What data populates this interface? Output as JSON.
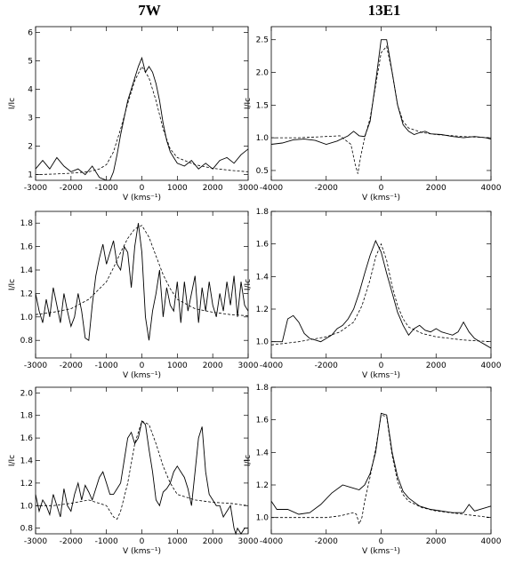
{
  "column_titles": [
    "7W",
    "13E1"
  ],
  "chart_data": [
    {
      "type": "line",
      "xlabel": "V (kms⁻¹)",
      "ylabel": "I/Ic",
      "xlim": [
        -3000,
        3000
      ],
      "ylim": [
        0.8,
        6.2
      ],
      "xticks": [
        -3000,
        -2000,
        -1000,
        0,
        1000,
        2000,
        3000
      ],
      "yticks": [
        1,
        2,
        3,
        4,
        5,
        6
      ],
      "series": [
        {
          "style": "solid",
          "x": [
            -3000,
            -2800,
            -2600,
            -2400,
            -2200,
            -2000,
            -1800,
            -1600,
            -1400,
            -1200,
            -1000,
            -900,
            -800,
            -700,
            -600,
            -500,
            -400,
            -300,
            -200,
            -100,
            0,
            100,
            200,
            300,
            400,
            500,
            600,
            700,
            800,
            900,
            1000,
            1200,
            1400,
            1600,
            1800,
            2000,
            2200,
            2400,
            2600,
            2800,
            3000
          ],
          "y": [
            1.2,
            1.5,
            1.2,
            1.6,
            1.3,
            1.1,
            1.2,
            1.0,
            1.3,
            0.9,
            0.8,
            0.6,
            1.1,
            1.7,
            2.4,
            3.0,
            3.6,
            4.0,
            4.4,
            4.8,
            5.1,
            4.6,
            4.8,
            4.6,
            4.2,
            3.6,
            2.8,
            2.2,
            1.8,
            1.6,
            1.4,
            1.3,
            1.5,
            1.2,
            1.4,
            1.2,
            1.5,
            1.6,
            1.4,
            1.7,
            1.9
          ]
        },
        {
          "style": "dashed",
          "x": [
            -3000,
            -2500,
            -2000,
            -1500,
            -1200,
            -1000,
            -800,
            -600,
            -400,
            -200,
            0,
            200,
            400,
            600,
            800,
            1000,
            1500,
            2000,
            2500,
            3000
          ],
          "y": [
            1.0,
            1.02,
            1.05,
            1.1,
            1.2,
            1.35,
            1.8,
            2.6,
            3.5,
            4.3,
            4.8,
            4.4,
            3.6,
            2.6,
            1.9,
            1.6,
            1.35,
            1.22,
            1.15,
            1.1
          ]
        }
      ]
    },
    {
      "type": "line",
      "xlabel": "V (kms⁻¹)",
      "ylabel": "I/Ic",
      "xlim": [
        -4000,
        4000
      ],
      "ylim": [
        0.35,
        2.7
      ],
      "xticks": [
        -4000,
        -2000,
        0,
        2000,
        4000
      ],
      "yticks": [
        0.5,
        1.0,
        1.5,
        2.0,
        2.5
      ],
      "series": [
        {
          "style": "solid",
          "x": [
            -4000,
            -3600,
            -3200,
            -2800,
            -2400,
            -2000,
            -1600,
            -1200,
            -1000,
            -800,
            -600,
            -400,
            -200,
            0,
            200,
            400,
            600,
            800,
            1000,
            1200,
            1400,
            1600,
            1800,
            2200,
            2600,
            3000,
            3400,
            3800,
            4000
          ],
          "y": [
            0.9,
            0.92,
            0.97,
            0.98,
            0.96,
            0.9,
            0.95,
            1.03,
            1.1,
            1.03,
            1.02,
            1.25,
            1.85,
            2.5,
            2.5,
            2.0,
            1.5,
            1.2,
            1.1,
            1.05,
            1.08,
            1.1,
            1.06,
            1.05,
            1.02,
            1.0,
            1.02,
            1.0,
            0.98
          ]
        },
        {
          "style": "dashed",
          "x": [
            -4000,
            -3000,
            -2000,
            -1500,
            -1100,
            -950,
            -850,
            -750,
            -600,
            -400,
            -200,
            0,
            200,
            400,
            600,
            800,
            1000,
            1500,
            2000,
            3000,
            4000
          ],
          "y": [
            1.0,
            1.0,
            1.02,
            1.03,
            0.9,
            0.6,
            0.45,
            0.7,
            1.0,
            1.3,
            1.8,
            2.3,
            2.4,
            2.0,
            1.5,
            1.25,
            1.15,
            1.08,
            1.05,
            1.02,
            1.0
          ]
        }
      ]
    },
    {
      "type": "line",
      "xlabel": "V (kms⁻¹)",
      "ylabel": "I/Ic",
      "xlim": [
        -3000,
        3000
      ],
      "ylim": [
        0.65,
        1.9
      ],
      "xticks": [
        -3000,
        -2000,
        -1000,
        0,
        1000,
        2000,
        3000
      ],
      "yticks": [
        0.8,
        1.0,
        1.2,
        1.4,
        1.6,
        1.8
      ],
      "series": [
        {
          "style": "solid",
          "x": [
            -3000,
            -2900,
            -2800,
            -2700,
            -2600,
            -2500,
            -2400,
            -2300,
            -2200,
            -2100,
            -2000,
            -1900,
            -1800,
            -1700,
            -1600,
            -1500,
            -1400,
            -1300,
            -1200,
            -1100,
            -1000,
            -900,
            -800,
            -700,
            -600,
            -500,
            -400,
            -300,
            -200,
            -100,
            0,
            100,
            200,
            300,
            400,
            500,
            600,
            700,
            800,
            900,
            1000,
            1100,
            1200,
            1300,
            1400,
            1500,
            1600,
            1700,
            1800,
            1900,
            2000,
            2100,
            2200,
            2300,
            2400,
            2500,
            2600,
            2700,
            2800,
            2900,
            3000
          ],
          "y": [
            1.2,
            1.05,
            0.95,
            1.15,
            1.0,
            1.25,
            1.1,
            0.95,
            1.2,
            1.05,
            0.92,
            1.0,
            1.2,
            1.05,
            0.82,
            0.8,
            1.1,
            1.35,
            1.5,
            1.62,
            1.45,
            1.55,
            1.65,
            1.45,
            1.4,
            1.6,
            1.55,
            1.25,
            1.6,
            1.8,
            1.55,
            1.0,
            0.8,
            1.05,
            1.2,
            1.4,
            1.0,
            1.25,
            1.1,
            1.05,
            1.3,
            0.95,
            1.3,
            1.05,
            1.2,
            1.35,
            0.95,
            1.25,
            1.05,
            1.3,
            1.1,
            1.0,
            1.2,
            1.05,
            1.3,
            1.1,
            1.35,
            1.0,
            1.3,
            1.1,
            1.05
          ]
        },
        {
          "style": "dashed",
          "x": [
            -3000,
            -2500,
            -2000,
            -1500,
            -1000,
            -800,
            -600,
            -400,
            -200,
            0,
            200,
            400,
            600,
            800,
            1000,
            1500,
            2000,
            2500,
            3000
          ],
          "y": [
            1.02,
            1.04,
            1.07,
            1.15,
            1.3,
            1.42,
            1.55,
            1.67,
            1.75,
            1.78,
            1.68,
            1.52,
            1.36,
            1.24,
            1.15,
            1.07,
            1.04,
            1.02,
            1.01
          ]
        }
      ]
    },
    {
      "type": "line",
      "xlabel": "V (kms⁻¹)",
      "ylabel": "I/Ic",
      "xlim": [
        -4000,
        4000
      ],
      "ylim": [
        0.9,
        1.8
      ],
      "xticks": [
        -4000,
        -2000,
        0,
        2000,
        4000
      ],
      "yticks": [
        1.0,
        1.2,
        1.4,
        1.6,
        1.8
      ],
      "series": [
        {
          "style": "solid",
          "x": [
            -4000,
            -3600,
            -3400,
            -3200,
            -3000,
            -2800,
            -2600,
            -2400,
            -2200,
            -2000,
            -1800,
            -1600,
            -1400,
            -1200,
            -1000,
            -800,
            -600,
            -400,
            -200,
            0,
            200,
            400,
            600,
            800,
            1000,
            1200,
            1400,
            1600,
            1800,
            2000,
            2200,
            2400,
            2600,
            2800,
            3000,
            3200,
            3400,
            3600,
            3800,
            4000
          ],
          "y": [
            1.0,
            1.0,
            1.14,
            1.16,
            1.12,
            1.05,
            1.02,
            1.01,
            1.0,
            1.02,
            1.04,
            1.08,
            1.1,
            1.14,
            1.2,
            1.3,
            1.42,
            1.53,
            1.62,
            1.55,
            1.42,
            1.3,
            1.18,
            1.1,
            1.04,
            1.08,
            1.1,
            1.07,
            1.06,
            1.08,
            1.06,
            1.05,
            1.04,
            1.06,
            1.12,
            1.06,
            1.02,
            1.0,
            0.98,
            0.96
          ]
        },
        {
          "style": "dashed",
          "x": [
            -4000,
            -3000,
            -2000,
            -1500,
            -1000,
            -700,
            -400,
            -200,
            0,
            200,
            400,
            600,
            800,
            1000,
            1500,
            2000,
            3000,
            4000
          ],
          "y": [
            0.98,
            1.0,
            1.03,
            1.06,
            1.12,
            1.22,
            1.38,
            1.52,
            1.6,
            1.5,
            1.34,
            1.22,
            1.14,
            1.09,
            1.05,
            1.03,
            1.01,
            1.0
          ]
        }
      ]
    },
    {
      "type": "line",
      "xlabel": "V (kms⁻¹)",
      "ylabel": "I/Ic",
      "xlim": [
        -3000,
        3000
      ],
      "ylim": [
        0.75,
        2.05
      ],
      "xticks": [
        -3000,
        -2000,
        -1000,
        0,
        1000,
        2000,
        3000
      ],
      "yticks": [
        0.8,
        1.0,
        1.2,
        1.4,
        1.6,
        1.8,
        2.0
      ],
      "series": [
        {
          "style": "solid",
          "x": [
            -3000,
            -2900,
            -2800,
            -2700,
            -2600,
            -2500,
            -2400,
            -2300,
            -2200,
            -2100,
            -2000,
            -1900,
            -1800,
            -1700,
            -1600,
            -1500,
            -1400,
            -1300,
            -1200,
            -1100,
            -1000,
            -900,
            -800,
            -700,
            -600,
            -500,
            -400,
            -300,
            -200,
            -100,
            0,
            100,
            200,
            300,
            400,
            500,
            600,
            700,
            800,
            900,
            1000,
            1100,
            1200,
            1300,
            1400,
            1500,
            1600,
            1700,
            1800,
            1900,
            2000,
            2100,
            2200,
            2300,
            2400,
            2500,
            2600,
            2650,
            2700,
            2800,
            2900,
            3000
          ],
          "y": [
            1.1,
            0.95,
            1.05,
            1.0,
            0.92,
            1.1,
            1.0,
            0.9,
            1.15,
            1.0,
            0.95,
            1.1,
            1.2,
            1.05,
            1.18,
            1.12,
            1.05,
            1.15,
            1.25,
            1.3,
            1.2,
            1.1,
            1.1,
            1.15,
            1.2,
            1.4,
            1.6,
            1.65,
            1.55,
            1.6,
            1.75,
            1.72,
            1.5,
            1.3,
            1.05,
            1.0,
            1.12,
            1.15,
            1.2,
            1.3,
            1.35,
            1.3,
            1.25,
            1.15,
            1.0,
            1.3,
            1.6,
            1.7,
            1.3,
            1.1,
            1.05,
            1.0,
            1.0,
            0.9,
            0.95,
            1.0,
            0.8,
            0.75,
            0.8,
            0.75,
            0.8,
            0.8
          ]
        },
        {
          "style": "dashed",
          "x": [
            -3000,
            -2500,
            -2000,
            -1500,
            -1000,
            -800,
            -700,
            -600,
            -400,
            -200,
            0,
            200,
            400,
            600,
            800,
            1000,
            1500,
            2000,
            2500,
            3000
          ],
          "y": [
            1.0,
            1.0,
            1.02,
            1.05,
            1.0,
            0.9,
            0.88,
            0.95,
            1.2,
            1.55,
            1.75,
            1.72,
            1.55,
            1.35,
            1.2,
            1.1,
            1.05,
            1.03,
            1.02,
            1.0
          ]
        }
      ]
    },
    {
      "type": "line",
      "xlabel": "V (kms⁻¹)",
      "ylabel": "I/Ic",
      "xlim": [
        -4000,
        4000
      ],
      "ylim": [
        0.9,
        1.8
      ],
      "xticks": [
        -4000,
        -2000,
        0,
        2000,
        4000
      ],
      "yticks": [
        1.0,
        1.2,
        1.4,
        1.6,
        1.8
      ],
      "series": [
        {
          "style": "solid",
          "x": [
            -4000,
            -3800,
            -3400,
            -3000,
            -2600,
            -2200,
            -1800,
            -1400,
            -1000,
            -800,
            -600,
            -400,
            -200,
            0,
            200,
            400,
            600,
            800,
            1000,
            1400,
            1800,
            2200,
            2600,
            3000,
            3200,
            3400,
            3800,
            4000
          ],
          "y": [
            1.1,
            1.05,
            1.05,
            1.02,
            1.03,
            1.08,
            1.15,
            1.2,
            1.18,
            1.17,
            1.2,
            1.27,
            1.4,
            1.64,
            1.63,
            1.4,
            1.25,
            1.16,
            1.12,
            1.07,
            1.05,
            1.04,
            1.03,
            1.03,
            1.08,
            1.04,
            1.06,
            1.07
          ]
        },
        {
          "style": "dashed",
          "x": [
            -4000,
            -3000,
            -2000,
            -1500,
            -1000,
            -900,
            -800,
            -700,
            -600,
            -400,
            -200,
            0,
            200,
            400,
            600,
            800,
            1000,
            1500,
            2000,
            3000,
            4000
          ],
          "y": [
            1.0,
            1.0,
            1.0,
            1.01,
            1.03,
            1.02,
            0.96,
            1.0,
            1.1,
            1.25,
            1.42,
            1.63,
            1.62,
            1.38,
            1.22,
            1.14,
            1.1,
            1.06,
            1.04,
            1.02,
            1.0
          ]
        }
      ]
    }
  ]
}
